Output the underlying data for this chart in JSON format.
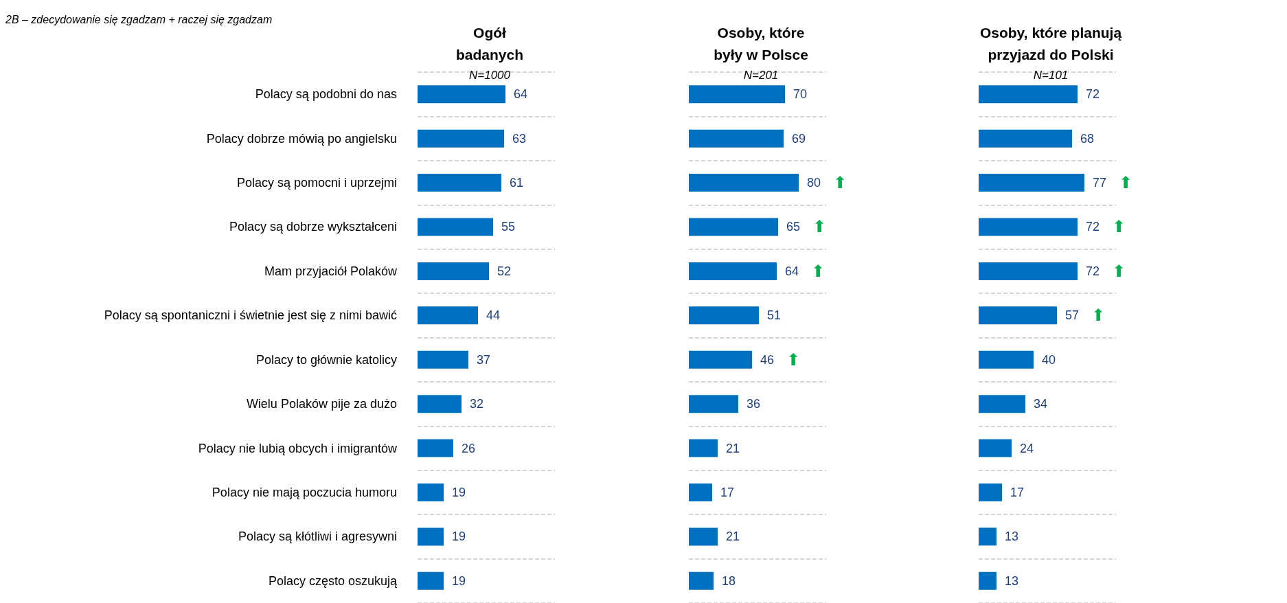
{
  "chart_data": [
    {
      "type": "bar",
      "orientation": "horizontal",
      "title": "Ogół\nbadanych",
      "subtitle": "N=1000",
      "categories": [
        "Polacy są podobni do nas",
        "Polacy dobrze mówią po angielsku",
        "Polacy są pomocni i uprzejmi",
        "Polacy są dobrze wykształceni",
        "Mam przyjaciół Polaków",
        "Polacy są spontaniczni i świetnie jest się z nimi bawić",
        "Polacy to głównie katolicy",
        "Wielu Polaków pije za dużo",
        "Polacy nie lubią obcych i imigrantów",
        "Polacy nie mają poczucia humoru",
        "Polacy są kłótliwi i agresywni",
        "Polacy często oszukują"
      ],
      "values": [
        64,
        63,
        61,
        55,
        52,
        44,
        37,
        32,
        26,
        19,
        19,
        19
      ],
      "color": "#0070c0",
      "data_labels": true,
      "xlim": [
        0,
        100
      ],
      "grid": "y",
      "tick_labels": "y",
      "annotations": [
        "2B – zdecydowanie się zgadzam + raczej się zgadzam"
      ]
    },
    {
      "type": "bar",
      "orientation": "horizontal",
      "title": "Osoby, które\nbyły w Polsce",
      "subtitle": "N=201",
      "categories": [
        "Polacy są podobni do nas",
        "Polacy dobrze mówią po angielsku",
        "Polacy są pomocni i uprzejmi",
        "Polacy są dobrze wykształceni",
        "Mam przyjaciół Polaków",
        "Polacy są spontaniczni i świetnie jest się z nimi bawić",
        "Polacy to głównie katolicy",
        "Wielu Polaków pije za dużo",
        "Polacy nie lubią obcych i imigrantów",
        "Polacy nie mają poczucia humoru",
        "Polacy są kłótliwi i agresywni",
        "Polacy często oszukują"
      ],
      "values": [
        70,
        69,
        80,
        65,
        64,
        51,
        46,
        36,
        21,
        17,
        21,
        18
      ],
      "color": "#0070c0",
      "data_labels": true,
      "xlim": [
        0,
        100
      ],
      "grid": "y",
      "tick_labels": false,
      "annotations": [
        {
          "text": "⬆",
          "x": 80,
          "y": "Polacy są pomocni i uprzejmi"
        },
        {
          "text": "⬆",
          "x": 65,
          "y": "Polacy są dobrze wykształceni"
        },
        {
          "text": "⬆",
          "x": 64,
          "y": "Mam przyjaciół Polaków"
        },
        {
          "text": "⬆",
          "x": 46,
          "y": "Polacy to głównie katolicy"
        }
      ]
    },
    {
      "type": "bar",
      "orientation": "horizontal",
      "title": "Osoby, które planują\nprzyjazd do Polski",
      "subtitle": "N=101",
      "categories": [
        "Polacy są podobni do nas",
        "Polacy dobrze mówią po angielsku",
        "Polacy są pomocni i uprzejmi",
        "Polacy są dobrze wykształceni",
        "Mam przyjaciół Polaków",
        "Polacy są spontaniczni i świetnie jest się z nimi bawić",
        "Polacy to głównie katolicy",
        "Wielu Polaków pije za dużo",
        "Polacy nie lubią obcych i imigrantów",
        "Polacy nie mają poczucia humoru",
        "Polacy są kłótliwi i agresywni",
        "Polacy często oszukują"
      ],
      "values": [
        72,
        68,
        77,
        72,
        72,
        57,
        40,
        34,
        24,
        17,
        13,
        13
      ],
      "color": "#0070c0",
      "data_labels": true,
      "xlim": [
        0,
        100
      ],
      "grid": "y",
      "tick_labels": false,
      "annotations": [
        {
          "text": "⬆",
          "x": 77,
          "y": "Polacy są pomocni i uprzejmi"
        },
        {
          "text": "⬆",
          "x": 72,
          "y": "Polacy są dobrze wykształceni"
        },
        {
          "text": "⬆",
          "x": 72,
          "y": "Mam przyjaciół Polaków"
        },
        {
          "text": "⬆",
          "x": 57,
          "y": "Polacy są spontaniczni i świetnie jest się z nimi bawić"
        }
      ]
    }
  ]
}
